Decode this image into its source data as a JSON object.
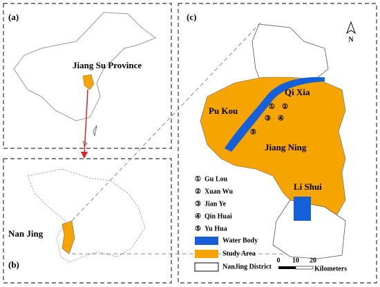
{
  "panels": {
    "a": {
      "label": "(a)",
      "province": "Jiang Su Province"
    },
    "b": {
      "label": "(b)",
      "city": "Nan Jing"
    },
    "c": {
      "label": "(c)",
      "north": "N",
      "districts": [
        "Pu Kou",
        "Qi Xia",
        "Jiang Ning",
        "Li Shui"
      ],
      "district_key": [
        {
          "marker": "①",
          "name": "Gu Lou"
        },
        {
          "marker": "②",
          "name": "Xuan Wu"
        },
        {
          "marker": "③",
          "name": "Jian Ye"
        },
        {
          "marker": "④",
          "name": "Qin Huai"
        },
        {
          "marker": "⑤",
          "name": "Yu Hua"
        }
      ],
      "legend": [
        "Water Body",
        "Study Area",
        "NanJing District"
      ],
      "scale": {
        "ticks": [
          "0",
          "10",
          "20"
        ],
        "unit": "Kilometers"
      }
    }
  }
}
